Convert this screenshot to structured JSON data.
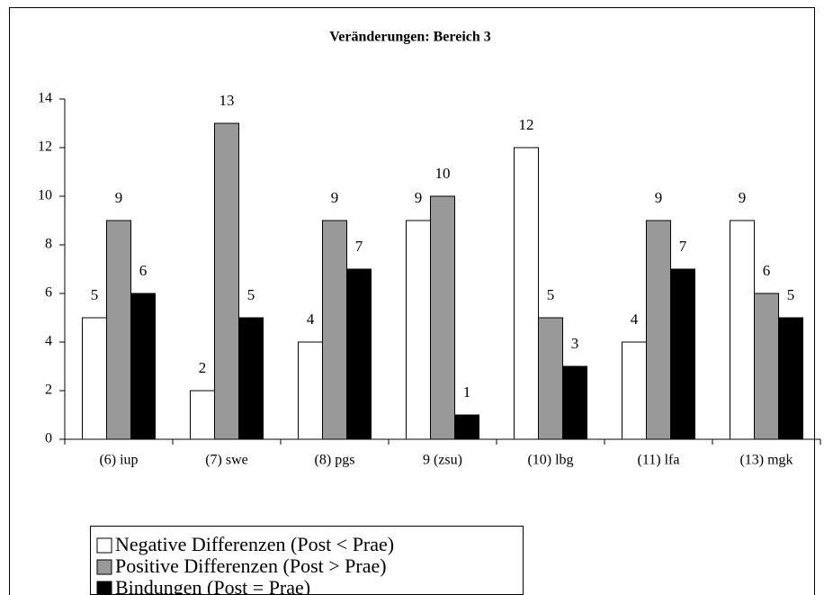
{
  "chart_data": {
    "type": "bar",
    "title": "Veränderungen: Bereich 3",
    "categories": [
      "(6) iup",
      "(7) swe",
      "(8) pgs",
      "9 (zsu)",
      "(10) lbg",
      "(11) lfa",
      "(13) mgk"
    ],
    "series": [
      {
        "name": "Negative Differenzen (Post < Prae)",
        "color": "#ffffff",
        "values": [
          5,
          2,
          4,
          9,
          12,
          4,
          9
        ]
      },
      {
        "name": "Positive Differenzen (Post > Prae)",
        "color": "#999999",
        "values": [
          9,
          13,
          9,
          10,
          5,
          9,
          6
        ]
      },
      {
        "name": "Bindungen (Post = Prae)",
        "color": "#000000",
        "values": [
          6,
          5,
          7,
          1,
          3,
          7,
          5
        ]
      }
    ],
    "ylim": [
      0,
      14
    ],
    "yticks": [
      0,
      2,
      4,
      6,
      8,
      10,
      12,
      14
    ],
    "grid": false,
    "legend": "bottom-left"
  }
}
